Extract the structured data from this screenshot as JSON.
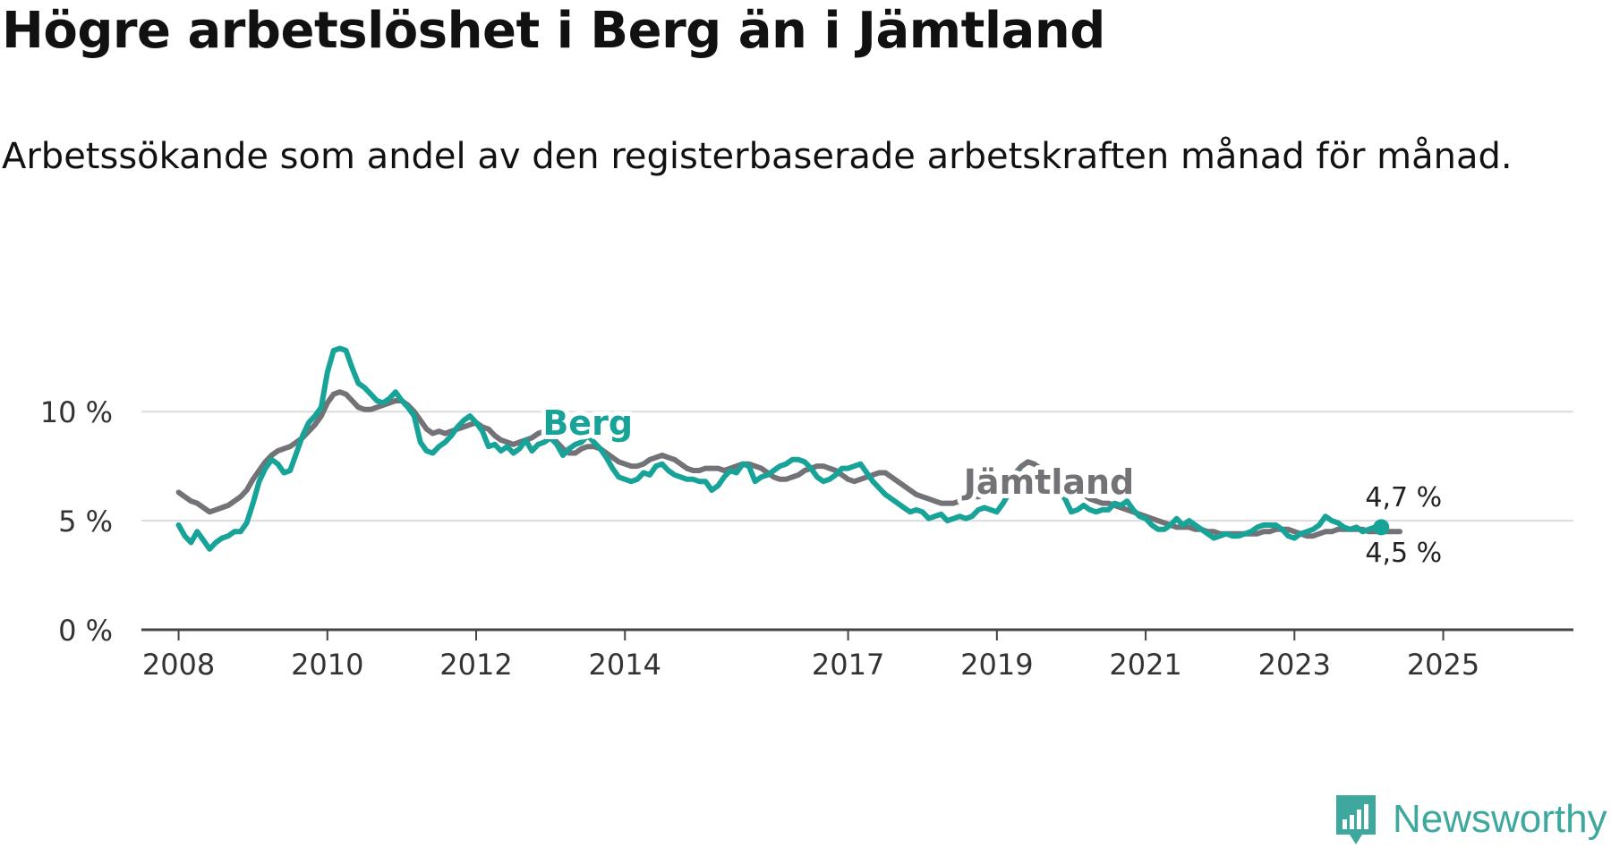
{
  "title": "Högre arbetslöshet i Berg än i Jämtland",
  "subtitle": "Arbetssökande som andel av den registerbaserade arbetskraften månad för månad.",
  "brand": {
    "name": "Newsworthy",
    "color": "#3fa89e",
    "icon": "newsworthy-logo-icon"
  },
  "chart_data": {
    "type": "line",
    "title": "Högre arbetslöshet i Berg än i Jämtland",
    "subtitle": "Arbetssökande som andel av den registerbaserade arbetskraften månad för månad.",
    "xlabel": "",
    "ylabel": "",
    "x_start": "2008-01",
    "x_step": "1 month",
    "xlim": [
      2007.5,
      2026.75
    ],
    "ylim": [
      0,
      10.5
    ],
    "grid": true,
    "y_ticks": [
      {
        "value": 0,
        "label": "0 %"
      },
      {
        "value": 5,
        "label": "5 %"
      },
      {
        "value": 10,
        "label": "10 %"
      }
    ],
    "x_ticks": [
      {
        "value": 2008,
        "label": "2008"
      },
      {
        "value": 2010,
        "label": "2010"
      },
      {
        "value": 2012,
        "label": "2012"
      },
      {
        "value": 2014,
        "label": "2014"
      },
      {
        "value": 2017,
        "label": "2017"
      },
      {
        "value": 2019,
        "label": "2019"
      },
      {
        "value": 2021,
        "label": "2021"
      },
      {
        "value": 2023,
        "label": "2023"
      },
      {
        "value": 2025,
        "label": "2025"
      }
    ],
    "series": [
      {
        "name": "Jämtland",
        "label": "Jämtland",
        "color": "#737277",
        "end_label": "4,5 %",
        "values": [
          6.3,
          6.1,
          5.9,
          5.8,
          5.6,
          5.4,
          5.5,
          5.6,
          5.7,
          5.9,
          6.1,
          6.4,
          6.9,
          7.3,
          7.7,
          8,
          8.2,
          8.3,
          8.4,
          8.6,
          8.8,
          9.1,
          9.4,
          9.8,
          10.4,
          10.8,
          10.9,
          10.8,
          10.5,
          10.2,
          10.1,
          10.1,
          10.2,
          10.3,
          10.4,
          10.5,
          10.5,
          10.3,
          10,
          9.6,
          9.2,
          9,
          9.1,
          9,
          9.1,
          9.2,
          9.3,
          9.4,
          9.5,
          9.3,
          9.2,
          8.9,
          8.7,
          8.6,
          8.5,
          8.6,
          8.7,
          8.8,
          9,
          9.1,
          8.9,
          8.6,
          8.3,
          8.1,
          8.1,
          8.3,
          8.4,
          8.4,
          8.3,
          8.1,
          7.9,
          7.7,
          7.6,
          7.5,
          7.5,
          7.6,
          7.8,
          7.9,
          8,
          7.9,
          7.8,
          7.6,
          7.4,
          7.3,
          7.3,
          7.4,
          7.4,
          7.4,
          7.3,
          7.4,
          7.5,
          7.6,
          7.6,
          7.5,
          7.4,
          7.2,
          7,
          6.9,
          6.9,
          7,
          7.1,
          7.3,
          7.4,
          7.5,
          7.5,
          7.4,
          7.3,
          7.1,
          6.9,
          6.8,
          6.9,
          7,
          7.1,
          7.2,
          7.2,
          7,
          6.8,
          6.6,
          6.4,
          6.2,
          6.1,
          6,
          5.9,
          5.8,
          5.8,
          5.8,
          5.9,
          6,
          6.1,
          6.1,
          6.2,
          6.3,
          6.4,
          6.6,
          6.9,
          7.2,
          7.5,
          7.7,
          7.6,
          7.4,
          7.2,
          7,
          6.9,
          6.8,
          6.6,
          6.4,
          6.2,
          6,
          5.9,
          5.8,
          5.8,
          5.7,
          5.6,
          5.5,
          5.4,
          5.3,
          5.2,
          5.1,
          5,
          4.9,
          4.8,
          4.7,
          4.7,
          4.7,
          4.6,
          4.6,
          4.5,
          4.5,
          4.4,
          4.4,
          4.4,
          4.4,
          4.4,
          4.4,
          4.4,
          4.5,
          4.5,
          4.6,
          4.6,
          4.6,
          4.5,
          4.4,
          4.3,
          4.3,
          4.4,
          4.5,
          4.5,
          4.6,
          4.6,
          4.6,
          4.6,
          4.6,
          4.5,
          4.5,
          4.5,
          4.5,
          4.5,
          4.5
        ]
      },
      {
        "name": "Berg",
        "label": "Berg",
        "color": "#17a398",
        "end_label": "4,7 %",
        "values": [
          4.8,
          4.3,
          4,
          4.5,
          4.1,
          3.7,
          4,
          4.2,
          4.3,
          4.5,
          4.5,
          4.9,
          5.8,
          6.8,
          7.4,
          7.8,
          7.6,
          7.2,
          7.3,
          8.1,
          8.9,
          9.5,
          9.8,
          10.2,
          11.8,
          12.8,
          12.9,
          12.8,
          12,
          11.3,
          11.1,
          10.8,
          10.5,
          10.4,
          10.6,
          10.9,
          10.5,
          10.2,
          9.8,
          8.6,
          8.2,
          8.1,
          8.4,
          8.6,
          8.9,
          9.3,
          9.6,
          9.8,
          9.5,
          9.1,
          8.4,
          8.5,
          8.2,
          8.4,
          8.1,
          8.3,
          8.7,
          8.2,
          8.5,
          8.6,
          8.8,
          8.5,
          8,
          8.3,
          8.5,
          8.6,
          8.9,
          8.6,
          8.3,
          7.9,
          7.4,
          7,
          6.9,
          6.8,
          6.9,
          7.2,
          7.1,
          7.5,
          7.6,
          7.3,
          7.1,
          7,
          6.9,
          6.9,
          6.8,
          6.8,
          6.4,
          6.6,
          7,
          7.3,
          7.2,
          7.6,
          7.5,
          6.8,
          7,
          7.1,
          7.3,
          7.5,
          7.6,
          7.8,
          7.8,
          7.7,
          7.4,
          7,
          6.8,
          6.9,
          7.1,
          7.4,
          7.4,
          7.5,
          7.6,
          7.2,
          6.8,
          6.5,
          6.2,
          6,
          5.8,
          5.6,
          5.4,
          5.5,
          5.4,
          5.1,
          5.2,
          5.3,
          5,
          5.1,
          5.2,
          5.1,
          5.2,
          5.5,
          5.6,
          5.5,
          5.4,
          5.8,
          6.3,
          6.9,
          7.2,
          7.1,
          7,
          6.9,
          7,
          6.8,
          6.4,
          6,
          5.4,
          5.5,
          5.7,
          5.5,
          5.4,
          5.5,
          5.5,
          5.8,
          5.7,
          5.9,
          5.5,
          5.2,
          5.1,
          4.8,
          4.6,
          4.6,
          4.8,
          5.1,
          4.8,
          5,
          4.8,
          4.6,
          4.4,
          4.2,
          4.3,
          4.4,
          4.3,
          4.3,
          4.4,
          4.5,
          4.7,
          4.8,
          4.8,
          4.8,
          4.6,
          4.3,
          4.2,
          4.4,
          4.5,
          4.6,
          4.8,
          5.2,
          5,
          4.9,
          4.7,
          4.6,
          4.7,
          4.5,
          4.6,
          4.7,
          4.7
        ]
      }
    ]
  }
}
